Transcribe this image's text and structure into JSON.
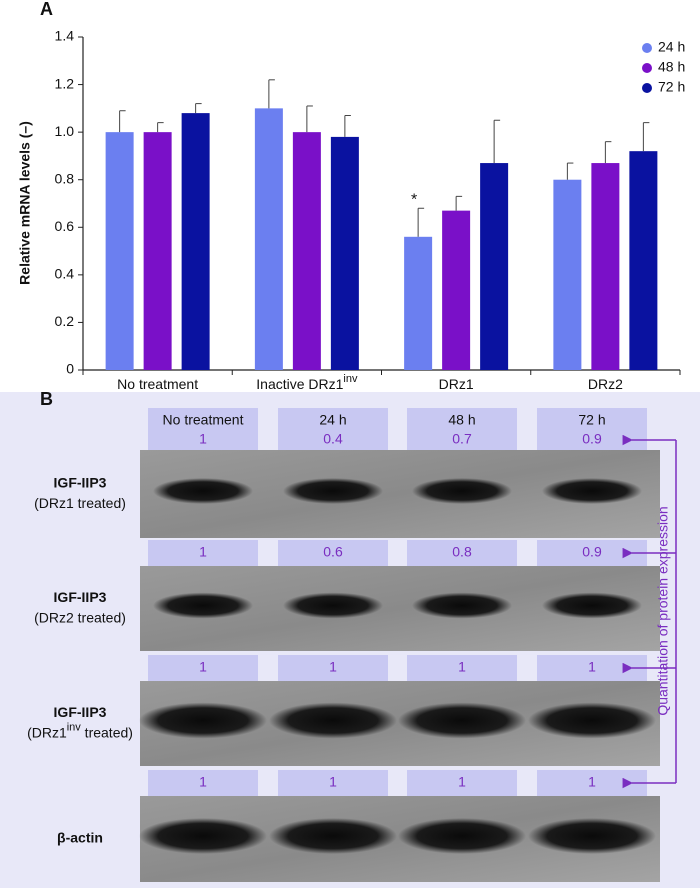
{
  "chart_data": {
    "type": "bar",
    "panel_label": "A",
    "y_label": "Relative mRNA levels (–)",
    "categories": [
      "No treatment",
      "Inactive DRz1",
      "DRz1",
      "DRz2"
    ],
    "category_sups": [
      null,
      "inv",
      null,
      null
    ],
    "series": [
      {
        "name": "24 h",
        "color": "#6b7ff0",
        "values": [
          1.0,
          1.1,
          0.56,
          0.8
        ],
        "errors": [
          0.09,
          0.12,
          0.12,
          0.07
        ]
      },
      {
        "name": "48 h",
        "color": "#7a10c8",
        "values": [
          1.0,
          1.0,
          0.67,
          0.87
        ],
        "errors": [
          0.04,
          0.11,
          0.06,
          0.09
        ]
      },
      {
        "name": "72 h",
        "color": "#0a12a0",
        "values": [
          1.08,
          0.98,
          0.87,
          0.92
        ],
        "errors": [
          0.04,
          0.09,
          0.18,
          0.12
        ]
      }
    ],
    "annotations": [
      {
        "text": "*"
      }
    ],
    "ylim": [
      0,
      1.4
    ],
    "yticks": [
      0,
      0.2,
      0.4,
      0.6,
      0.8,
      {
        "value": 1,
        "label": "1.0"
      },
      1.2,
      1.4
    ],
    "legend": "upper-right",
    "grid": false
  },
  "panel_b": {
    "panel_label": "B",
    "columns": [
      "No treatment",
      "24 h",
      "48 h",
      "72 h"
    ],
    "quant_label": "Quantitation of protein expression",
    "blots": [
      {
        "label": "IGF-IIP3",
        "sublabel": "(DRz1 treated)",
        "quant": [
          1,
          0.4,
          0.7,
          0.9
        ]
      },
      {
        "label": "IGF-IIP3",
        "sublabel": "(DRz2 treated)",
        "quant": [
          1,
          0.6,
          0.8,
          0.9
        ]
      },
      {
        "label": "IGF-IIP3",
        "sublabel": [
          "(DRz1",
          "inv",
          " treated)"
        ],
        "quant": [
          1,
          1,
          1,
          1
        ]
      },
      {
        "label": "β-actin",
        "quant": [
          1,
          1,
          1,
          1
        ]
      }
    ]
  }
}
